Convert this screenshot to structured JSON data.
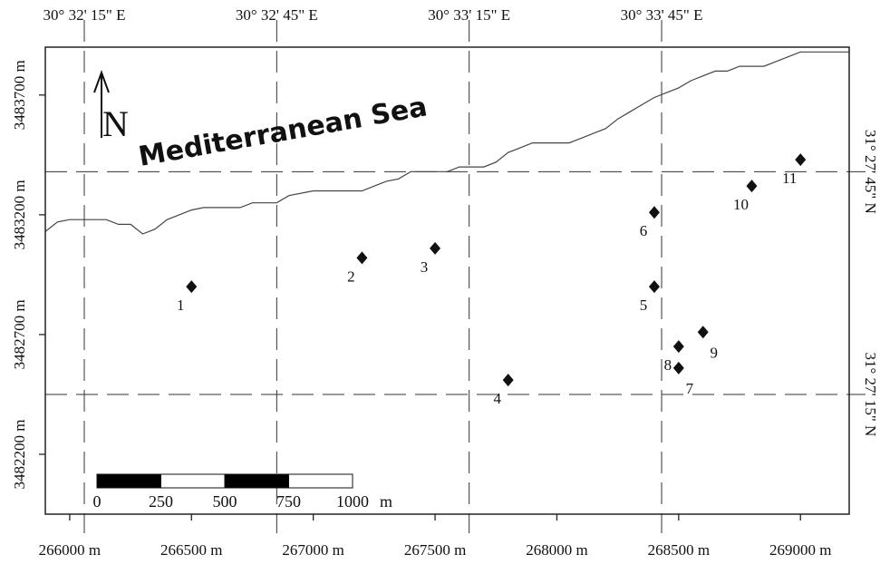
{
  "title": "",
  "map": {
    "sea_label": "Mediterranean Sea",
    "north_arrow_label": "N",
    "easting_min": 265900,
    "easting_max": 269200,
    "northing_min": 3481950,
    "northing_max": 3483900,
    "bottom_ticks": [
      {
        "value": 266000,
        "label": "266000 m"
      },
      {
        "value": 266500,
        "label": "266500 m"
      },
      {
        "value": 267000,
        "label": "267000 m"
      },
      {
        "value": 267500,
        "label": "267500 m"
      },
      {
        "value": 268000,
        "label": "268000 m"
      },
      {
        "value": 268500,
        "label": "268500 m"
      },
      {
        "value": 269000,
        "label": "269000 m"
      }
    ],
    "left_ticks": [
      {
        "value": 3483700,
        "label": "3483700 m"
      },
      {
        "value": 3483200,
        "label": "3483200 m"
      },
      {
        "value": 3482700,
        "label": "3482700 m"
      },
      {
        "value": 3482200,
        "label": "3482200 m"
      }
    ],
    "top_ticks": [
      {
        "value": 266060,
        "label": "30° 32' 15\" E"
      },
      {
        "value": 266850,
        "label": "30° 32' 45\" E"
      },
      {
        "value": 267640,
        "label": "30° 33' 15\" E"
      },
      {
        "value": 268430,
        "label": "30° 33' 45\" E"
      }
    ],
    "right_ticks": [
      {
        "value": 3483380,
        "label": "31° 27' 45\" N"
      },
      {
        "value": 3482450,
        "label": "31° 27' 15\" N"
      }
    ],
    "stations": [
      {
        "id": "1",
        "easting": 266500,
        "northing": 3482900,
        "label_pos": "below-left"
      },
      {
        "id": "2",
        "easting": 267200,
        "northing": 3483020,
        "label_pos": "below-left"
      },
      {
        "id": "3",
        "easting": 267500,
        "northing": 3483060,
        "label_pos": "below-left"
      },
      {
        "id": "4",
        "easting": 267800,
        "northing": 3482510,
        "label_pos": "below-left"
      },
      {
        "id": "5",
        "easting": 268400,
        "northing": 3482900,
        "label_pos": "below-left"
      },
      {
        "id": "6",
        "easting": 268400,
        "northing": 3483210,
        "label_pos": "below-left"
      },
      {
        "id": "7",
        "easting": 268500,
        "northing": 3482560,
        "label_pos": "below-right"
      },
      {
        "id": "8",
        "easting": 268500,
        "northing": 3482650,
        "label_pos": "below-left"
      },
      {
        "id": "9",
        "easting": 268600,
        "northing": 3482710,
        "label_pos": "below-right"
      },
      {
        "id": "10",
        "easting": 268800,
        "northing": 3483320,
        "label_pos": "below-left"
      },
      {
        "id": "11",
        "easting": 269000,
        "northing": 3483430,
        "label_pos": "below-left"
      }
    ],
    "coastline": [
      [
        265900,
        3483130
      ],
      [
        265950,
        3483170
      ],
      [
        266000,
        3483180
      ],
      [
        266150,
        3483180
      ],
      [
        266200,
        3483160
      ],
      [
        266250,
        3483160
      ],
      [
        266300,
        3483120
      ],
      [
        266350,
        3483140
      ],
      [
        266400,
        3483180
      ],
      [
        266450,
        3483200
      ],
      [
        266500,
        3483220
      ],
      [
        266550,
        3483230
      ],
      [
        266700,
        3483230
      ],
      [
        266750,
        3483250
      ],
      [
        266850,
        3483250
      ],
      [
        266900,
        3483280
      ],
      [
        267000,
        3483300
      ],
      [
        267200,
        3483300
      ],
      [
        267250,
        3483320
      ],
      [
        267300,
        3483340
      ],
      [
        267350,
        3483350
      ],
      [
        267400,
        3483380
      ],
      [
        267550,
        3483380
      ],
      [
        267600,
        3483400
      ],
      [
        267700,
        3483400
      ],
      [
        267750,
        3483420
      ],
      [
        267800,
        3483460
      ],
      [
        267850,
        3483480
      ],
      [
        267900,
        3483500
      ],
      [
        268050,
        3483500
      ],
      [
        268100,
        3483520
      ],
      [
        268150,
        3483540
      ],
      [
        268200,
        3483560
      ],
      [
        268250,
        3483600
      ],
      [
        268300,
        3483630
      ],
      [
        268350,
        3483660
      ],
      [
        268400,
        3483690
      ],
      [
        268450,
        3483710
      ],
      [
        268500,
        3483730
      ],
      [
        268550,
        3483760
      ],
      [
        268600,
        3483780
      ],
      [
        268650,
        3483800
      ],
      [
        268700,
        3483800
      ],
      [
        268750,
        3483820
      ],
      [
        268850,
        3483820
      ],
      [
        268900,
        3483840
      ],
      [
        268950,
        3483860
      ],
      [
        269000,
        3483880
      ],
      [
        269200,
        3483880
      ]
    ],
    "scale_bar": {
      "segments": [
        {
          "from": 0,
          "to": 250,
          "fill": "#000000"
        },
        {
          "from": 250,
          "to": 500,
          "fill": "#ffffff"
        },
        {
          "from": 500,
          "to": 750,
          "fill": "#000000"
        },
        {
          "from": 750,
          "to": 1000,
          "fill": "#ffffff"
        }
      ],
      "labels": [
        "0",
        "250",
        "500",
        "750",
        "1000"
      ],
      "unit": "m"
    }
  },
  "colors": {
    "ink": "#111111",
    "grid": "#333333",
    "coast": "#444444"
  }
}
